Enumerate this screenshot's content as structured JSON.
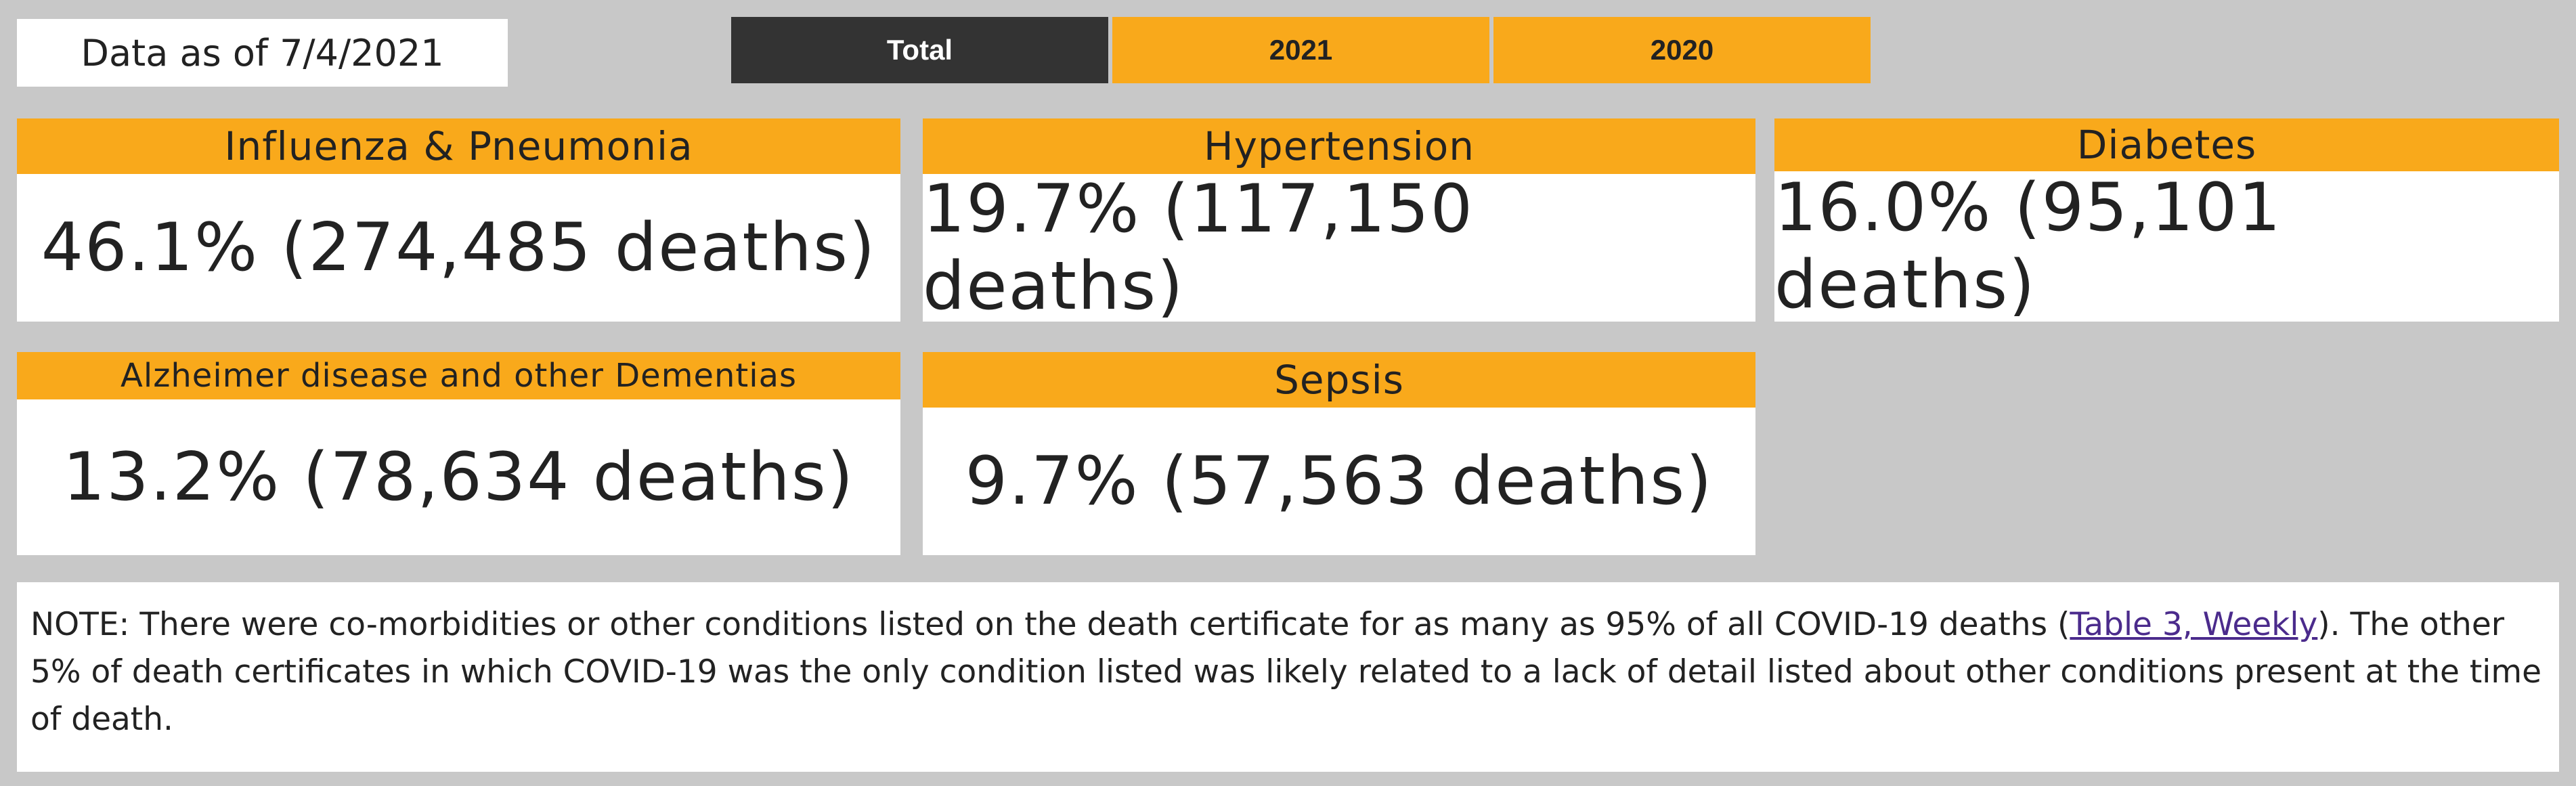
{
  "date_label": "Data as of 7/4/2021",
  "tabs": [
    {
      "label": "Total",
      "active": true
    },
    {
      "label": "2021",
      "active": false
    },
    {
      "label": "2020",
      "active": false
    }
  ],
  "cards": [
    {
      "title": "Influenza & Pneumonia",
      "value": "46.1% (274,485 deaths)"
    },
    {
      "title": "Hypertension",
      "value": "19.7% (117,150 deaths)"
    },
    {
      "title": "Diabetes",
      "value": "16.0% (95,101 deaths)"
    },
    {
      "title": "Alzheimer disease and other Dementias",
      "value": "13.2% (78,634 deaths)"
    },
    {
      "title": "Sepsis",
      "value": "9.7% (57,563 deaths)"
    }
  ],
  "note": {
    "prefix": "NOTE: There were co-morbidities or other conditions listed on the death certificate for as many as 95% of all COVID-19 deaths (",
    "link_text": "Table 3, Weekly",
    "suffix": "). The other 5% of death certificates in which COVID-19 was the only condition listed was likely related to a lack of detail listed about other conditions present at the time of death."
  },
  "colors": {
    "accent": "#f9a91b",
    "active_tab": "#333333",
    "background": "#c8c8c8",
    "link": "#4b2b8c"
  }
}
